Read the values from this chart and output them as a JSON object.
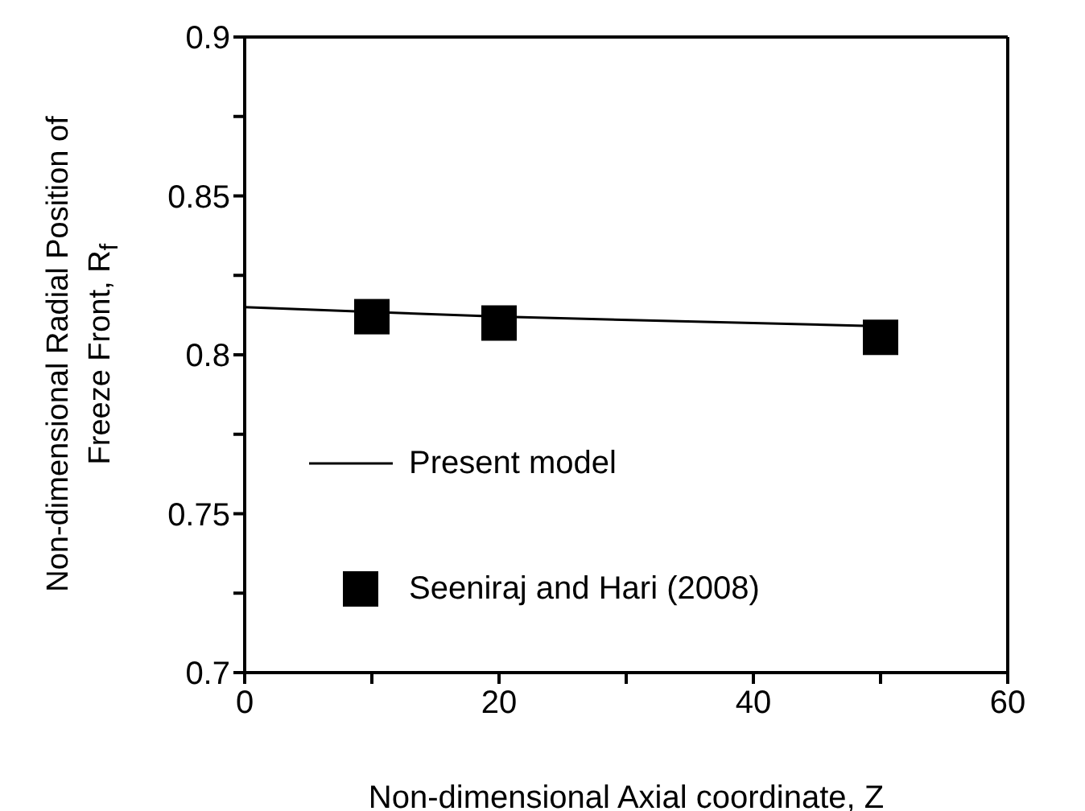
{
  "chart_data": {
    "type": "line",
    "xlabel": "Non-dimensional Axial coordinate, Z",
    "ylabel": "Non-dimensional Radial Position of Freeze Front, R$_{f}$",
    "xlim": [
      0,
      60
    ],
    "xticks": [
      0,
      {
        "value": 10,
        "label": null
      },
      20,
      {
        "value": 30,
        "label": null
      },
      40,
      {
        "value": 50,
        "label": null
      },
      60
    ],
    "ylim": [
      0.7,
      0.9
    ],
    "yticks": [
      0.7,
      {
        "value": 0.725,
        "label": null
      },
      0.75,
      {
        "value": 0.775,
        "label": null
      },
      0.8,
      {
        "value": 0.825,
        "label": null
      },
      0.85,
      {
        "value": 0.875,
        "label": null
      },
      0.9
    ],
    "grid": false,
    "legend": "bottom left",
    "series": [
      {
        "name": "Present model",
        "type": "line",
        "color": "#000000",
        "marker": "none",
        "line_style": "solid",
        "x": [
          0,
          10,
          20,
          40,
          50
        ],
        "values": [
          0.815,
          0.8135,
          0.812,
          0.81,
          0.809
        ]
      },
      {
        "name": "Seeniraj and Hari (2008)",
        "type": "scatter",
        "color": "#000000",
        "marker": "square",
        "x": [
          10,
          20,
          50
        ],
        "values": [
          0.812,
          0.81,
          0.8055
        ]
      }
    ]
  }
}
